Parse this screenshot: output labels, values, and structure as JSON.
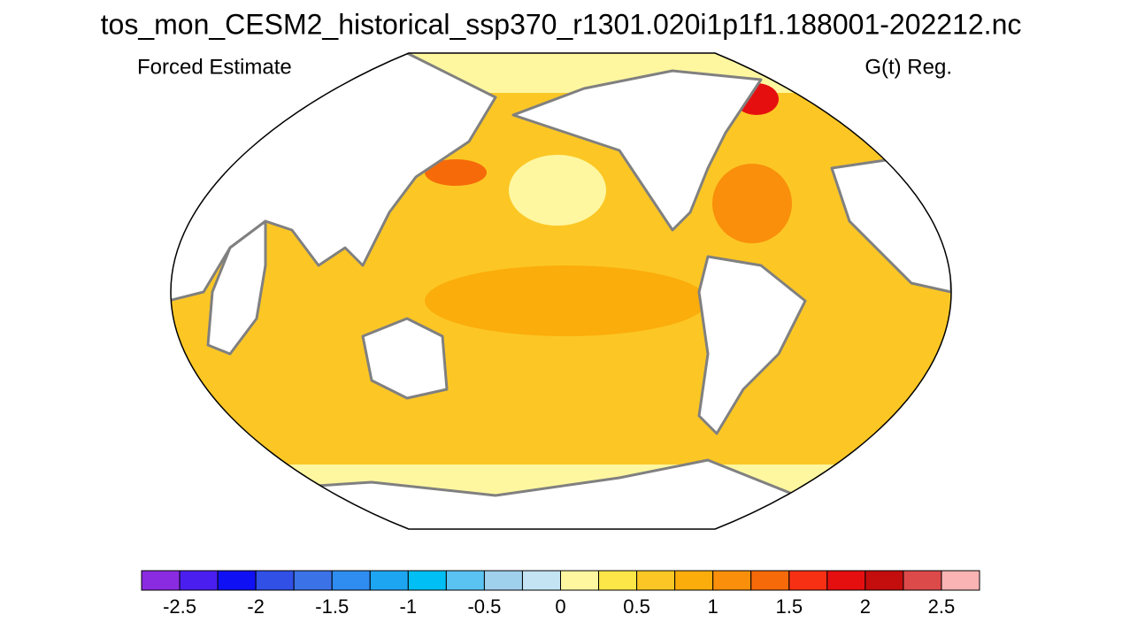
{
  "title": "tos_mon_CESM2_historical_ssp370_r1301.020i1p1f1.188001-202212.nc",
  "left_label": "Forced Estimate",
  "right_label": "G(t) Reg.",
  "colorbar": {
    "lim": [
      -2.75,
      2.75
    ],
    "ticks": [
      -2.5,
      -2,
      -1.5,
      -1,
      -0.5,
      0,
      0.5,
      1,
      1.5,
      2,
      2.5
    ],
    "colors": [
      "#8a2be2",
      "#4b1ef0",
      "#1010f5",
      "#3050e6",
      "#3c72e8",
      "#2f8cf0",
      "#1ea5f2",
      "#00bff5",
      "#5ac3f2",
      "#9fd0ec",
      "#c4e4f4",
      "#fff7a0",
      "#fde648",
      "#fcc725",
      "#fbad0c",
      "#f98f0a",
      "#f66a0a",
      "#f73014",
      "#e60f0f",
      "#c40d0d",
      "#dd4a4a",
      "#fbb4b4"
    ]
  }
}
